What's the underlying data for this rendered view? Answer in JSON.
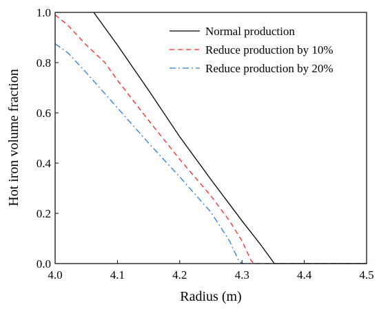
{
  "chart_data": {
    "type": "line",
    "xlabel": "Radius (m)",
    "ylabel": "Hot iron volume fraction",
    "xlim": [
      4.0,
      4.5
    ],
    "ylim": [
      0.0,
      1.0
    ],
    "x_ticks": [
      "4.0",
      "4.1",
      "4.2",
      "4.3",
      "4.4",
      "4.5"
    ],
    "y_ticks": [
      "0.0",
      "0.2",
      "0.4",
      "0.6",
      "0.8",
      "1.0"
    ],
    "grid": false,
    "legend_position": "top-right",
    "series": [
      {
        "name": "Normal production",
        "color": "#000000",
        "dash": "solid",
        "points": [
          [
            4.062,
            1.0
          ],
          [
            4.1,
            0.87
          ],
          [
            4.15,
            0.69
          ],
          [
            4.2,
            0.505
          ],
          [
            4.25,
            0.335
          ],
          [
            4.3,
            0.17
          ],
          [
            4.33,
            0.075
          ],
          [
            4.352,
            0.0
          ],
          [
            4.5,
            0.0
          ]
        ]
      },
      {
        "name": "Reduce production by 10%",
        "color": "#ff2020",
        "dash": "dashed",
        "points": [
          [
            4.0,
            0.99
          ],
          [
            4.02,
            0.95
          ],
          [
            4.05,
            0.87
          ],
          [
            4.08,
            0.8
          ],
          [
            4.1,
            0.73
          ],
          [
            4.15,
            0.57
          ],
          [
            4.2,
            0.415
          ],
          [
            4.25,
            0.27
          ],
          [
            4.28,
            0.17
          ],
          [
            4.3,
            0.09
          ],
          [
            4.315,
            0.01
          ],
          [
            4.32,
            0.0
          ],
          [
            4.5,
            0.0
          ]
        ]
      },
      {
        "name": "Reduce production by 20%",
        "color": "#2a7bd8",
        "dash": "dashdot",
        "points": [
          [
            4.0,
            0.875
          ],
          [
            4.02,
            0.84
          ],
          [
            4.05,
            0.76
          ],
          [
            4.1,
            0.62
          ],
          [
            4.15,
            0.48
          ],
          [
            4.2,
            0.345
          ],
          [
            4.25,
            0.205
          ],
          [
            4.28,
            0.09
          ],
          [
            4.295,
            0.01
          ],
          [
            4.3,
            0.0
          ],
          [
            4.5,
            0.0
          ]
        ]
      }
    ]
  }
}
